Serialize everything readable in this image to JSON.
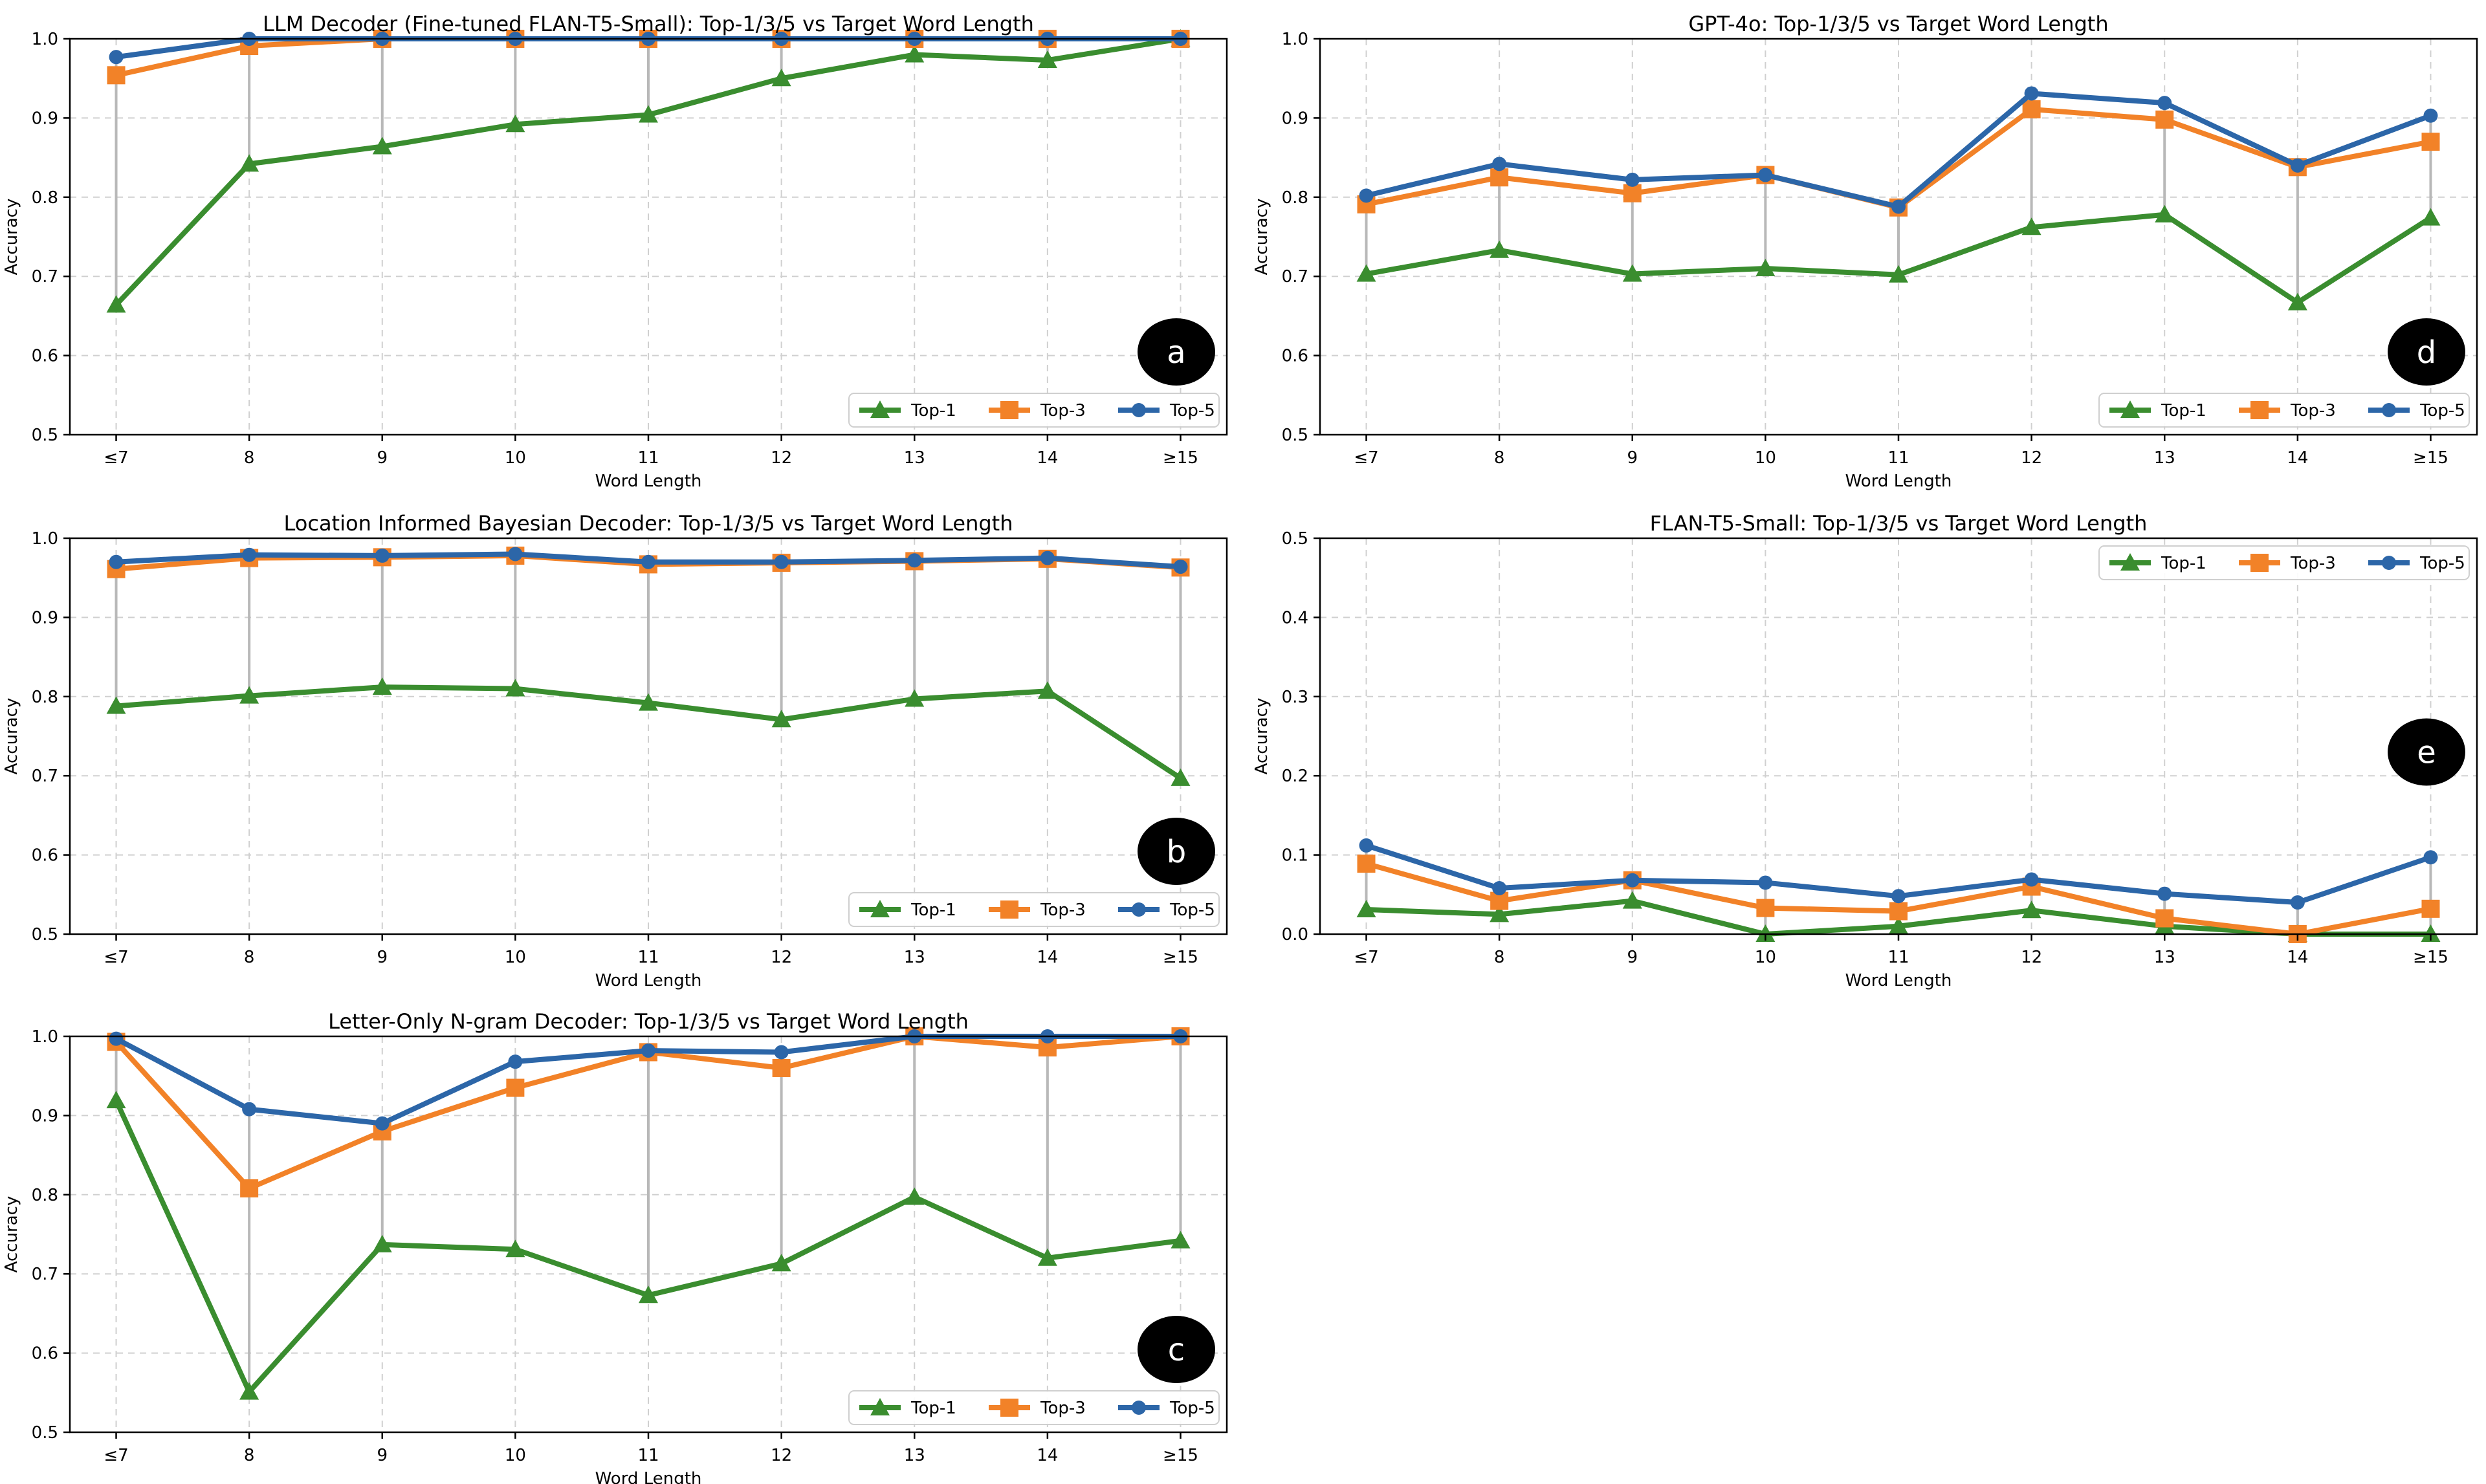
{
  "colors": {
    "top1": "#3a8d2f",
    "top3": "#f28228",
    "top5": "#2c66a8"
  },
  "legend": {
    "top1": "Top-1",
    "top3": "Top-3",
    "top5": "Top-5"
  },
  "chart_data": [
    {
      "id": "a",
      "type": "line",
      "title": "LLM Decoder (Fine-tuned FLAN-T5-Small): Top-1/3/5 vs Target Word Length",
      "xlabel": "Word Length",
      "ylabel": "Accuracy",
      "categories": [
        "≤7",
        "8",
        "9",
        "10",
        "11",
        "12",
        "13",
        "14",
        "≥15"
      ],
      "ylim": [
        0.5,
        1.0
      ],
      "yticks": [
        "0.5",
        "0.6",
        "0.7",
        "0.8",
        "0.9",
        "1.0"
      ],
      "grid": true,
      "legend_position": "lower-right",
      "panel_label": "a",
      "series": [
        {
          "name": "Top-1",
          "values": [
            0.664,
            0.842,
            0.864,
            0.892,
            0.904,
            0.95,
            0.98,
            0.973,
            1.0
          ]
        },
        {
          "name": "Top-3",
          "values": [
            0.954,
            0.991,
            1.0,
            1.0,
            1.0,
            1.0,
            1.0,
            1.0,
            1.0
          ]
        },
        {
          "name": "Top-5",
          "values": [
            0.977,
            1.0,
            1.0,
            1.0,
            1.0,
            1.0,
            1.0,
            1.0,
            1.0
          ]
        }
      ]
    },
    {
      "id": "d",
      "type": "line",
      "title": "GPT-4o: Top-1/3/5 vs Target Word Length",
      "xlabel": "Word Length",
      "ylabel": "Accuracy",
      "categories": [
        "≤7",
        "8",
        "9",
        "10",
        "11",
        "12",
        "13",
        "14",
        "≥15"
      ],
      "ylim": [
        0.5,
        1.0
      ],
      "yticks": [
        "0.5",
        "0.6",
        "0.7",
        "0.8",
        "0.9",
        "1.0"
      ],
      "grid": true,
      "legend_position": "lower-right",
      "panel_label": "d",
      "series": [
        {
          "name": "Top-1",
          "values": [
            0.703,
            0.733,
            0.703,
            0.71,
            0.702,
            0.762,
            0.778,
            0.667,
            0.774
          ]
        },
        {
          "name": "Top-3",
          "values": [
            0.791,
            0.825,
            0.805,
            0.828,
            0.787,
            0.911,
            0.898,
            0.838,
            0.87
          ]
        },
        {
          "name": "Top-5",
          "values": [
            0.802,
            0.842,
            0.822,
            0.828,
            0.788,
            0.931,
            0.919,
            0.84,
            0.903
          ]
        }
      ]
    },
    {
      "id": "b",
      "type": "line",
      "title": "Location Informed Bayesian Decoder: Top-1/3/5 vs Target Word Length",
      "xlabel": "Word Length",
      "ylabel": "Accuracy",
      "categories": [
        "≤7",
        "8",
        "9",
        "10",
        "11",
        "12",
        "13",
        "14",
        "≥15"
      ],
      "ylim": [
        0.5,
        1.0
      ],
      "yticks": [
        "0.5",
        "0.6",
        "0.7",
        "0.8",
        "0.9",
        "1.0"
      ],
      "grid": true,
      "legend_position": "lower-right",
      "panel_label": "b",
      "series": [
        {
          "name": "Top-1",
          "values": [
            0.788,
            0.801,
            0.812,
            0.81,
            0.792,
            0.771,
            0.797,
            0.807,
            0.697
          ]
        },
        {
          "name": "Top-3",
          "values": [
            0.961,
            0.975,
            0.976,
            0.978,
            0.967,
            0.969,
            0.971,
            0.974,
            0.963
          ]
        },
        {
          "name": "Top-5",
          "values": [
            0.97,
            0.979,
            0.978,
            0.98,
            0.97,
            0.97,
            0.972,
            0.975,
            0.964
          ]
        }
      ]
    },
    {
      "id": "e",
      "type": "line",
      "title": "FLAN-T5-Small: Top-1/3/5 vs Target Word Length",
      "xlabel": "Word Length",
      "ylabel": "Accuracy",
      "categories": [
        "≤7",
        "8",
        "9",
        "10",
        "11",
        "12",
        "13",
        "14",
        "≥15"
      ],
      "ylim": [
        0.0,
        0.5
      ],
      "yticks": [
        "0.0",
        "0.1",
        "0.2",
        "0.3",
        "0.4",
        "0.5"
      ],
      "grid": true,
      "legend_position": "upper-right",
      "panel_label": "e",
      "series": [
        {
          "name": "Top-1",
          "values": [
            0.031,
            0.025,
            0.042,
            0.0,
            0.01,
            0.03,
            0.01,
            0.0,
            0.0
          ]
        },
        {
          "name": "Top-3",
          "values": [
            0.089,
            0.042,
            0.068,
            0.033,
            0.029,
            0.06,
            0.02,
            0.0,
            0.032
          ]
        },
        {
          "name": "Top-5",
          "values": [
            0.112,
            0.058,
            0.068,
            0.065,
            0.048,
            0.069,
            0.051,
            0.04,
            0.097
          ]
        }
      ]
    },
    {
      "id": "c",
      "type": "line",
      "title": "Letter-Only N-gram Decoder: Top-1/3/5 vs Target Word Length",
      "xlabel": "Word Length",
      "ylabel": "Accuracy",
      "categories": [
        "≤7",
        "8",
        "9",
        "10",
        "11",
        "12",
        "13",
        "14",
        "≥15"
      ],
      "ylim": [
        0.5,
        1.0
      ],
      "yticks": [
        "0.5",
        "0.6",
        "0.7",
        "0.8",
        "0.9",
        "1.0"
      ],
      "grid": true,
      "legend_position": "lower-right",
      "panel_label": "c",
      "series": [
        {
          "name": "Top-1",
          "values": [
            0.919,
            0.551,
            0.737,
            0.731,
            0.673,
            0.713,
            0.797,
            0.72,
            0.742
          ]
        },
        {
          "name": "Top-3",
          "values": [
            0.993,
            0.808,
            0.88,
            0.935,
            0.98,
            0.96,
            1.0,
            0.986,
            1.0
          ]
        },
        {
          "name": "Top-5",
          "values": [
            0.997,
            0.908,
            0.89,
            0.968,
            0.982,
            0.98,
            1.0,
            1.0,
            1.0
          ]
        }
      ]
    }
  ]
}
